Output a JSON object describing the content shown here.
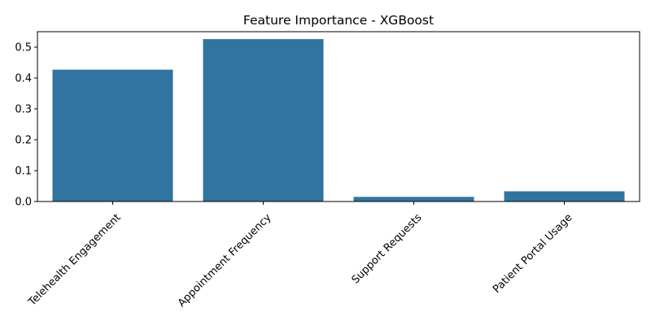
{
  "chart_data": {
    "type": "bar",
    "title": "Feature Importance - XGBoost",
    "xlabel": "",
    "ylabel": "",
    "categories": [
      "Telehealth Engagement",
      "Appointment Frequency",
      "Support Requests",
      "Patient Portal Usage"
    ],
    "values": [
      0.427,
      0.526,
      0.015,
      0.033
    ],
    "ylim": [
      0,
      0.55
    ],
    "yticks": [
      0.0,
      0.1,
      0.2,
      0.3,
      0.4,
      0.5
    ],
    "ytick_labels": [
      "0.0",
      "0.1",
      "0.2",
      "0.3",
      "0.4",
      "0.5"
    ],
    "grid": false,
    "legend": "none",
    "bar_color": "#3274a1",
    "xtick_rotation_deg": 45
  }
}
